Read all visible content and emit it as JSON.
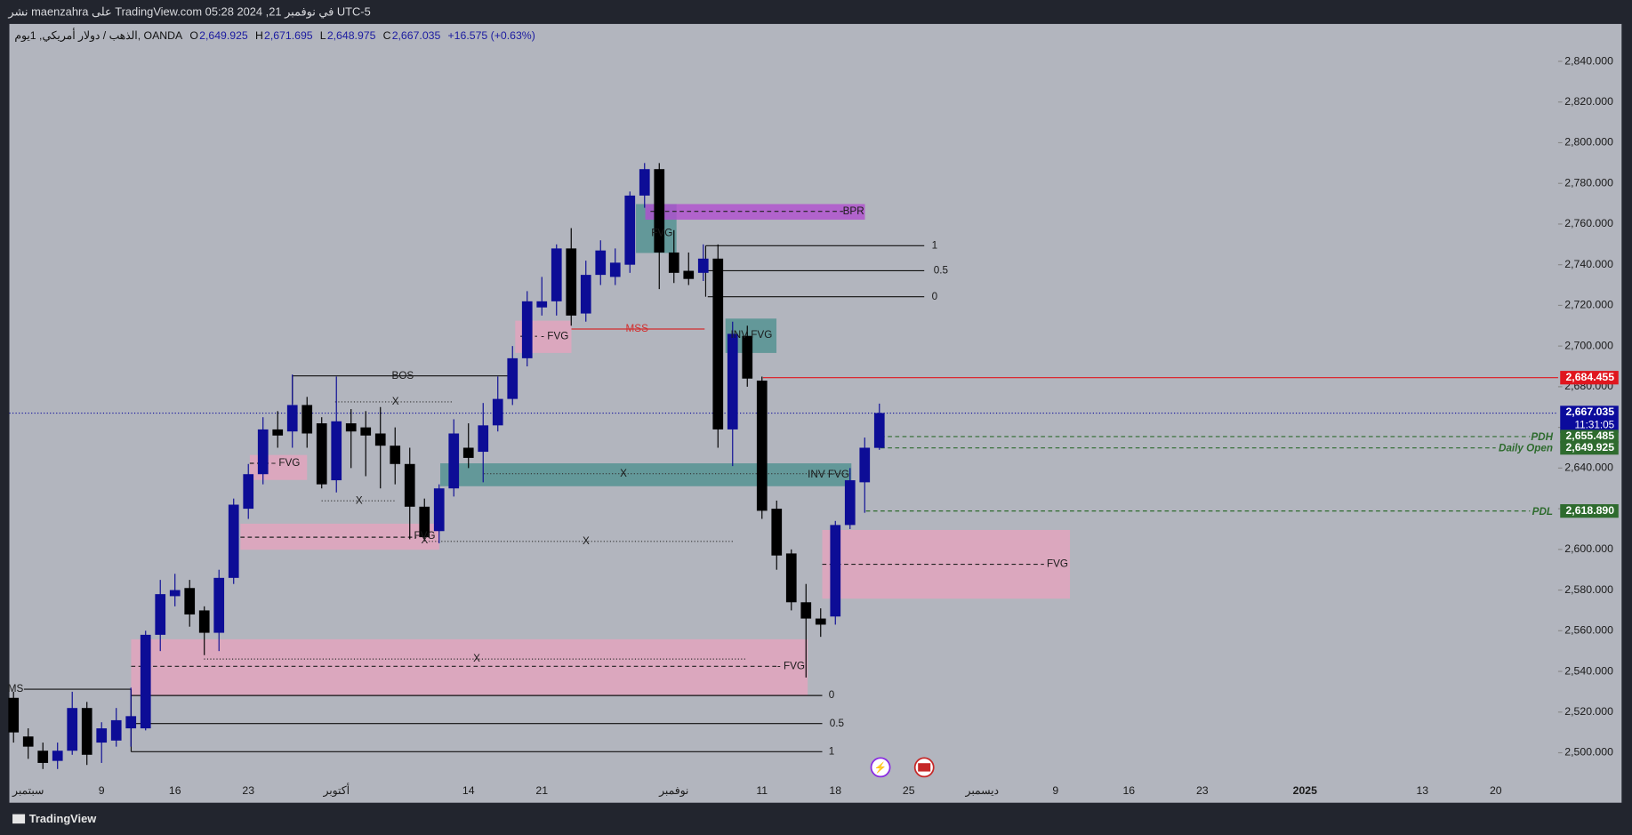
{
  "header": {
    "published": "نشر maenzahra على TradingView.com في نوفمبر 21, 2024 05:28 UTC-5"
  },
  "footer": {
    "brand": "TradingView"
  },
  "chart_data": {
    "type": "candlestick",
    "legend": {
      "symbol": "الذهب / دولار أمريكي, 1يوم, OANDA",
      "items": [
        {
          "key": "O",
          "value": "2,649.925"
        },
        {
          "key": "H",
          "value": "2,671.695"
        },
        {
          "key": "L",
          "value": "2,648.975"
        },
        {
          "key": "C",
          "value": "2,667.035"
        }
      ],
      "change": "+16.575 (+0.63%)"
    },
    "up_color": "#0d0d96",
    "down_color": "#000000",
    "categories": [
      null,
      "سبتمبر",
      null,
      null,
      null,
      null,
      "9",
      null,
      null,
      null,
      null,
      "16",
      null,
      null,
      null,
      null,
      "23",
      null,
      null,
      null,
      null,
      null,
      "أكتوبر",
      null,
      null,
      null,
      null,
      null,
      null,
      null,
      null,
      "14",
      null,
      null,
      null,
      null,
      "21",
      null,
      null,
      null,
      null,
      null,
      null,
      null,
      null,
      "نوفمبر",
      null,
      null,
      null,
      null,
      null,
      "11",
      null,
      null,
      null,
      null,
      "18",
      null,
      null,
      null,
      null,
      "25",
      null,
      null,
      null,
      null,
      "ديسمبر",
      null,
      null,
      null,
      null,
      "9",
      null,
      null,
      null,
      null,
      "16",
      null,
      null,
      null,
      null,
      "23",
      null,
      null,
      null,
      null,
      null,
      null,
      "2025",
      null,
      null,
      null,
      null,
      null,
      null,
      null,
      "13",
      null,
      null,
      null,
      null,
      "20",
      null,
      null,
      null,
      null
    ],
    "open": [
      2527,
      2508,
      2501,
      2496,
      2501,
      2522,
      2505,
      2506,
      2512,
      2512,
      2558,
      2577,
      2581,
      2570,
      2559,
      2586,
      2620,
      2637,
      2659,
      2658,
      2671,
      2662,
      2634,
      2662,
      2660,
      2657,
      2651,
      2642,
      2621,
      2609,
      2630,
      2650,
      2648,
      2661,
      2674,
      2694,
      2719,
      2722,
      2748,
      2716,
      2735,
      2734,
      2740,
      2774,
      2787,
      2746,
      2737,
      2736,
      2743,
      2659,
      2705,
      2683,
      2620,
      2598,
      2574,
      2566,
      2567,
      2612,
      2633,
      2649.925,
      null,
      null,
      null,
      null,
      null,
      null,
      null,
      null,
      null,
      null,
      null,
      null,
      null,
      null,
      null,
      null,
      null,
      null,
      null,
      null,
      null,
      null,
      null,
      null,
      null,
      null,
      null,
      null,
      null,
      null,
      null,
      null,
      null,
      null,
      null,
      null,
      null,
      null,
      null,
      null,
      null,
      null,
      null,
      null,
      null,
      null
    ],
    "high": [
      2530,
      2512,
      2505,
      2505,
      2530,
      2525,
      2515,
      2522,
      2532,
      2560,
      2585,
      2588,
      2585,
      2572,
      2590,
      2625,
      2642,
      2665,
      2668,
      2686,
      2675,
      2665,
      2685,
      2669,
      2668,
      2670,
      2660,
      2650,
      2625,
      2632,
      2664,
      2662,
      2672,
      2685,
      2700,
      2727,
      2734,
      2750,
      2758,
      2742,
      2752,
      2748,
      2776,
      2790,
      2790,
      2757,
      2746,
      2750,
      2750,
      2712,
      2710,
      2685,
      2624,
      2600,
      2583,
      2571,
      2614,
      2640,
      2655,
      2671.695,
      null,
      null,
      null,
      null,
      null,
      null,
      null,
      null,
      null,
      null,
      null,
      null,
      null,
      null,
      null,
      null,
      null,
      null,
      null,
      null,
      null,
      null,
      null,
      null,
      null,
      null,
      null,
      null,
      null,
      null,
      null,
      null,
      null,
      null,
      null,
      null,
      null,
      null,
      null,
      null,
      null,
      null,
      null,
      null,
      null,
      null
    ],
    "low": [
      2505,
      2497,
      2492,
      2492,
      2499,
      2494,
      2495,
      2503,
      2503,
      2511,
      2550,
      2572,
      2562,
      2548,
      2550,
      2583,
      2615,
      2632,
      2650,
      2650,
      2650,
      2630,
      2628,
      2640,
      2636,
      2630,
      2632,
      2605,
      2604,
      2603,
      2626,
      2640,
      2633,
      2658,
      2671,
      2690,
      2715,
      2715,
      2710,
      2712,
      2730,
      2730,
      2736,
      2768,
      2728,
      2731,
      2730,
      2732,
      2650,
      2641,
      2680,
      2615,
      2590,
      2570,
      2537,
      2557,
      2563,
      2610,
      2618,
      2648.975,
      null,
      null,
      null,
      null,
      null,
      null,
      null,
      null,
      null,
      null,
      null,
      null,
      null,
      null,
      null,
      null,
      null,
      null,
      null,
      null,
      null,
      null,
      null,
      null,
      null,
      null,
      null,
      null,
      null,
      null,
      null,
      null,
      null,
      null,
      null,
      null,
      null,
      null,
      null,
      null,
      null,
      null,
      null,
      null,
      null,
      null
    ],
    "close": [
      2510,
      2503,
      2495,
      2501,
      2522,
      2499,
      2512,
      2516,
      2518,
      2558,
      2578,
      2580,
      2568,
      2559,
      2586,
      2622,
      2637,
      2659,
      2656,
      2671,
      2657,
      2632,
      2663,
      2658,
      2656,
      2651,
      2642,
      2621,
      2606,
      2630,
      2657,
      2645,
      2661,
      2674,
      2694,
      2722,
      2722,
      2748,
      2715,
      2735,
      2747,
      2741,
      2774,
      2787,
      2746,
      2736,
      2733,
      2743,
      2659,
      2706,
      2684,
      2619,
      2597,
      2574,
      2566,
      2563,
      2612,
      2634,
      2650,
      2667.035,
      null,
      null,
      null,
      null,
      null,
      null,
      null,
      null,
      null,
      null,
      null,
      null,
      null,
      null,
      null,
      null,
      null,
      null,
      null,
      null,
      null,
      null,
      null,
      null,
      null,
      null,
      null,
      null,
      null,
      null,
      null,
      null,
      null,
      null,
      null,
      null,
      null,
      null,
      null,
      null,
      null,
      null,
      null,
      null,
      null,
      null
    ],
    "ylim": [
      2487.2,
      2858.4
    ],
    "yticks": [
      {
        "value": 2500,
        "label": "2,500.000"
      },
      {
        "value": 2520,
        "label": "2,520.000"
      },
      {
        "value": 2540,
        "label": "2,540.000"
      },
      {
        "value": 2560,
        "label": "2,560.000"
      },
      {
        "value": 2580,
        "label": "2,580.000"
      },
      {
        "value": 2600,
        "label": "2,600.000"
      },
      {
        "value": 2620,
        "label": "2,620.000"
      },
      {
        "value": 2640,
        "label": "2,640.000"
      },
      {
        "value": 2660,
        "label": "2,660.000"
      },
      {
        "value": 2680,
        "label": "2,680.000"
      },
      {
        "value": 2700,
        "label": "2,700.000"
      },
      {
        "value": 2720,
        "label": "2,720.000"
      },
      {
        "value": 2740,
        "label": "2,740.000"
      },
      {
        "value": 2760,
        "label": "2,760.000"
      },
      {
        "value": 2780,
        "label": "2,780.000"
      },
      {
        "value": 2800,
        "label": "2,800.000"
      },
      {
        "value": 2820,
        "label": "2,820.000"
      },
      {
        "value": 2840,
        "label": "2,840.000"
      }
    ],
    "price_labels": [
      {
        "value": 2684.455,
        "label": "2,684.455",
        "color": "#e0161e"
      },
      {
        "value": 2667.035,
        "label": "2,667.035",
        "color": "#0b0b9c"
      },
      {
        "value": 2655.485,
        "label": "2,655.485",
        "color": "#2e6b2e"
      },
      {
        "value": 2649.925,
        "label": "2,649.925",
        "color": "#2e6b2e"
      },
      {
        "value": 2618.89,
        "label": "2,618.890",
        "color": "#2e6b2e"
      }
    ],
    "countdown": "11:31:05",
    "annotations": [
      "BOS",
      "- FVG",
      "MSS",
      "BPR",
      "FVG",
      "INV FVG",
      "INV FVG",
      "- FVG",
      "FVG",
      "FVG",
      "- FVG",
      "X",
      "X",
      "X",
      "X",
      "X",
      "X",
      "1",
      "0.5",
      "0",
      "0",
      "0.5",
      "1",
      "MS",
      "PDH",
      "Daily Open",
      "PDL"
    ]
  }
}
